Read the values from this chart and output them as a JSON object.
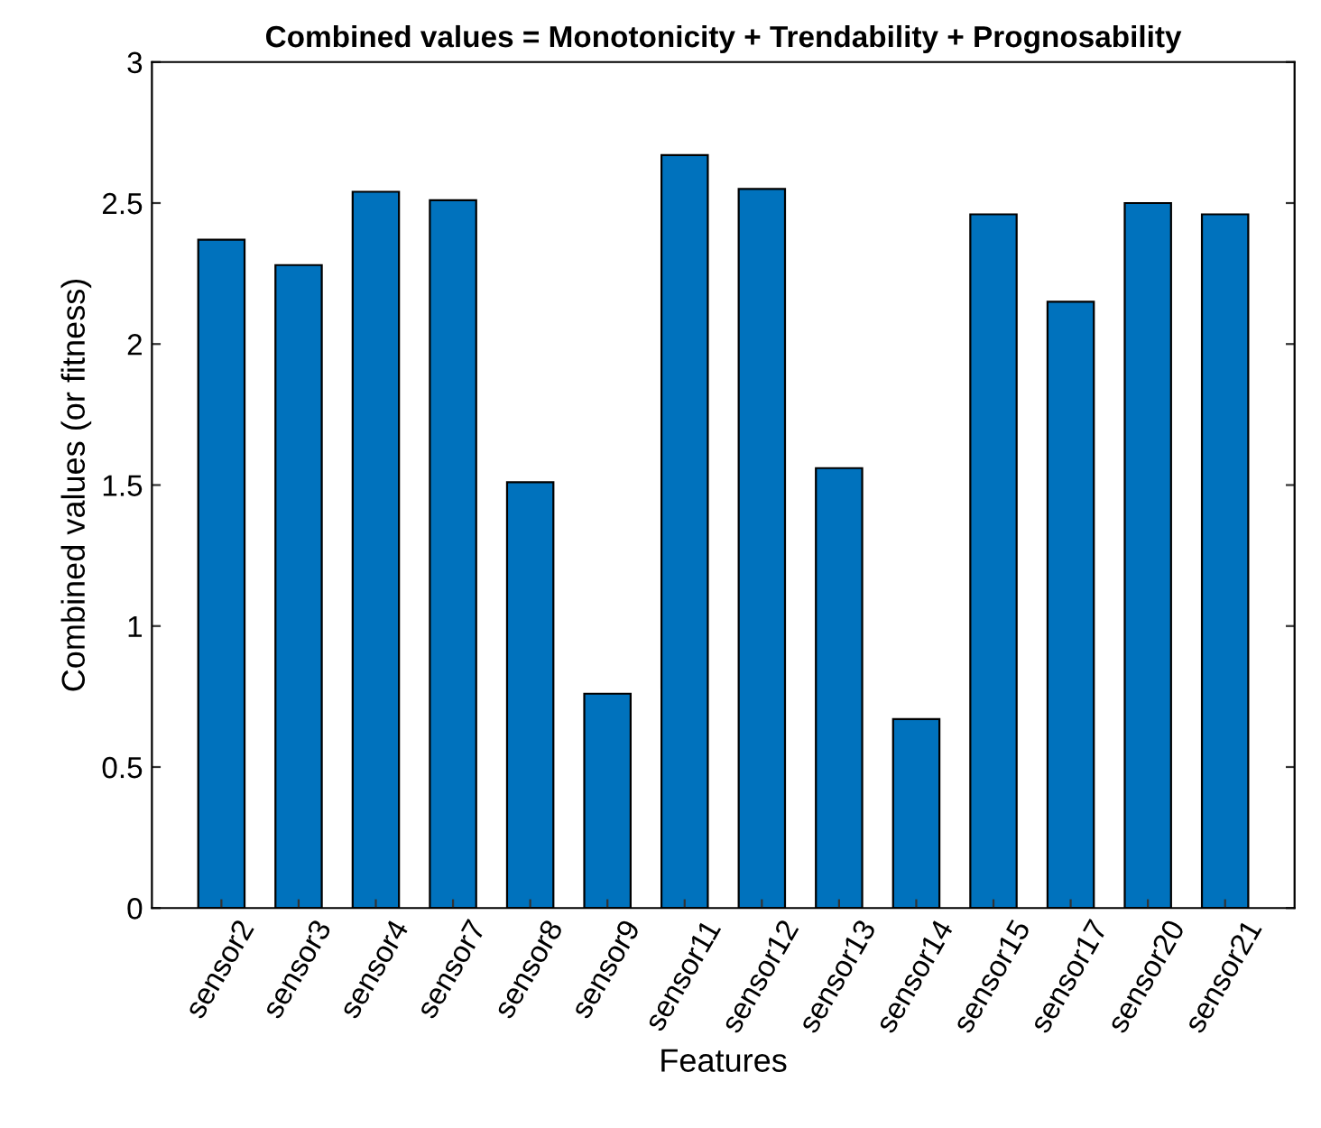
{
  "chart_data": {
    "type": "bar",
    "title": "Combined values = Monotonicity + Trendability + Prognosability",
    "xlabel": "Features",
    "ylabel": "Combined values (or fitness)",
    "categories": [
      "sensor2",
      "sensor3",
      "sensor4",
      "sensor7",
      "sensor8",
      "sensor9",
      "sensor11",
      "sensor12",
      "sensor13",
      "sensor14",
      "sensor15",
      "sensor17",
      "sensor20",
      "sensor21"
    ],
    "values": [
      2.37,
      2.28,
      2.54,
      2.51,
      1.51,
      0.76,
      2.67,
      2.55,
      1.56,
      0.67,
      2.46,
      2.15,
      2.5,
      2.46
    ],
    "color": "#0072bd",
    "ylim": [
      0,
      3
    ],
    "yticks": [
      0,
      0.5,
      1,
      1.5,
      2,
      2.5,
      3
    ],
    "grid": false,
    "legend": false
  }
}
